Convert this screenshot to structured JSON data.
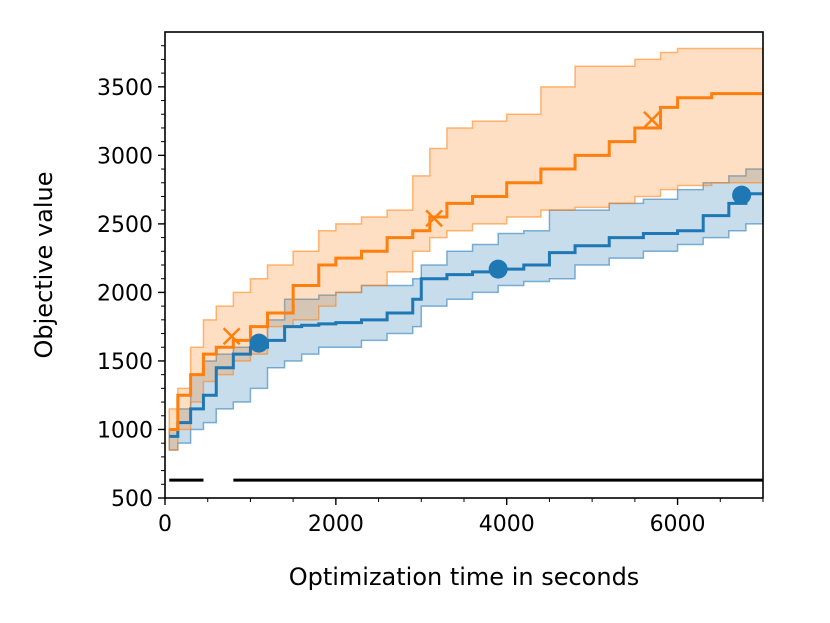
{
  "chart_data": {
    "type": "line",
    "title": "",
    "xlabel": "Optimization time in seconds",
    "ylabel": "Objective value",
    "xlim": [
      0,
      7000
    ],
    "ylim": [
      500,
      3900
    ],
    "xticks": [
      0,
      2000,
      4000,
      6000
    ],
    "yticks": [
      500,
      1000,
      1500,
      2000,
      2500,
      3000,
      3500
    ],
    "grid": false,
    "legend": "none",
    "series": [
      {
        "color": "#1f77b4",
        "marker": "circle",
        "x": [
          50,
          150,
          300,
          450,
          600,
          800,
          1000,
          1200,
          1400,
          1600,
          1800,
          2000,
          2300,
          2600,
          2900,
          3000,
          3300,
          3600,
          3900,
          4200,
          4500,
          4800,
          5200,
          5600,
          6000,
          6300,
          6600,
          6800,
          7000
        ],
        "y": [
          950,
          1050,
          1150,
          1250,
          1450,
          1550,
          1600,
          1650,
          1750,
          1760,
          1770,
          1780,
          1800,
          1850,
          1950,
          2100,
          2130,
          2150,
          2170,
          2200,
          2290,
          2340,
          2400,
          2430,
          2450,
          2560,
          2650,
          2720,
          2720
        ],
        "upper": [
          1000,
          1150,
          1400,
          1500,
          1550,
          1600,
          1650,
          1800,
          1950,
          1950,
          1980,
          2000,
          2050,
          2050,
          2100,
          2200,
          2300,
          2350,
          2430,
          2450,
          2600,
          2600,
          2650,
          2680,
          2750,
          2800,
          2850,
          2900,
          2900
        ],
        "lower": [
          850,
          900,
          1000,
          1050,
          1150,
          1200,
          1300,
          1450,
          1500,
          1550,
          1600,
          1600,
          1650,
          1700,
          1750,
          1900,
          1950,
          2000,
          2050,
          2080,
          2100,
          2200,
          2250,
          2300,
          2350,
          2400,
          2450,
          2500,
          2500
        ],
        "markers_x": [
          1100,
          3900,
          6750
        ],
        "markers_y": [
          1630,
          2170,
          2710
        ]
      },
      {
        "color": "#ff7f0e",
        "marker": "x",
        "x": [
          50,
          150,
          300,
          450,
          600,
          800,
          1000,
          1200,
          1500,
          1800,
          2000,
          2300,
          2600,
          2900,
          3100,
          3300,
          3600,
          4000,
          4400,
          4800,
          5200,
          5500,
          5800,
          6000,
          6400,
          7000
        ],
        "y": [
          1000,
          1250,
          1400,
          1550,
          1600,
          1650,
          1750,
          1850,
          2050,
          2200,
          2250,
          2300,
          2400,
          2450,
          2550,
          2650,
          2700,
          2800,
          2900,
          3000,
          3100,
          3200,
          3350,
          3420,
          3450,
          3450
        ],
        "upper": [
          1150,
          1300,
          1600,
          1800,
          1900,
          2000,
          2100,
          2200,
          2300,
          2450,
          2500,
          2550,
          2600,
          2850,
          3050,
          3200,
          3250,
          3300,
          3500,
          3650,
          3650,
          3700,
          3750,
          3780,
          3780,
          3780
        ],
        "lower": [
          850,
          1000,
          1200,
          1350,
          1400,
          1500,
          1550,
          1750,
          1800,
          1900,
          2000,
          2050,
          2150,
          2300,
          2400,
          2450,
          2500,
          2550,
          2600,
          2620,
          2650,
          2700,
          2750,
          2780,
          2800,
          2800
        ],
        "markers_x": [
          780,
          3150,
          5700
        ],
        "markers_y": [
          1680,
          2540,
          3260
        ]
      }
    ],
    "baseline": {
      "color": "#000000",
      "y": 630,
      "segments": [
        [
          50,
          450
        ],
        [
          800,
          7000
        ]
      ]
    }
  }
}
